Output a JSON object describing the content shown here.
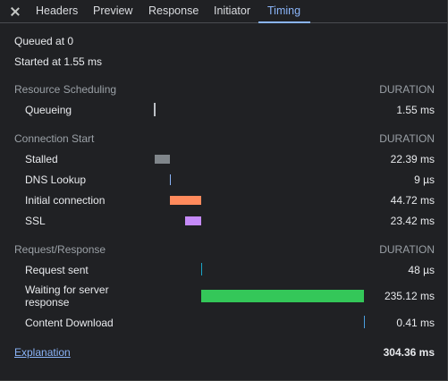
{
  "tabs": [
    {
      "label": "Headers"
    },
    {
      "label": "Preview"
    },
    {
      "label": "Response"
    },
    {
      "label": "Initiator"
    },
    {
      "label": "Timing"
    }
  ],
  "active_tab": "Timing",
  "summary": {
    "queued": "Queued at 0",
    "started": "Started at 1.55 ms"
  },
  "sections": {
    "scheduling": {
      "title": "Resource Scheduling",
      "duration_header": "DURATION",
      "rows": [
        {
          "label": "Queueing",
          "value": "1.55 ms"
        }
      ]
    },
    "connection": {
      "title": "Connection Start",
      "duration_header": "DURATION",
      "rows": [
        {
          "label": "Stalled",
          "value": "22.39 ms"
        },
        {
          "label": "DNS Lookup",
          "value": "9 µs"
        },
        {
          "label": "Initial connection",
          "value": "44.72 ms"
        },
        {
          "label": "SSL",
          "value": "23.42 ms"
        }
      ]
    },
    "request": {
      "title": "Request/Response",
      "duration_header": "DURATION",
      "rows": [
        {
          "label": "Request sent",
          "value": "48 µs"
        },
        {
          "label": "Waiting for server",
          "label_line2": "response",
          "value": "235.12 ms"
        },
        {
          "label": "Content Download",
          "value": "0.41 ms"
        }
      ]
    }
  },
  "footer": {
    "explanation": "Explanation",
    "total": "304.36 ms"
  },
  "colors": {
    "queueing": "#bdc1c6",
    "stalled": "#80868b",
    "dns": "#8ab4f8",
    "connection": "#ff8a5c",
    "ssl": "#c58af9",
    "request_sent": "#1aa6c7",
    "waiting": "#34c759",
    "download": "#4a9fe0"
  }
}
